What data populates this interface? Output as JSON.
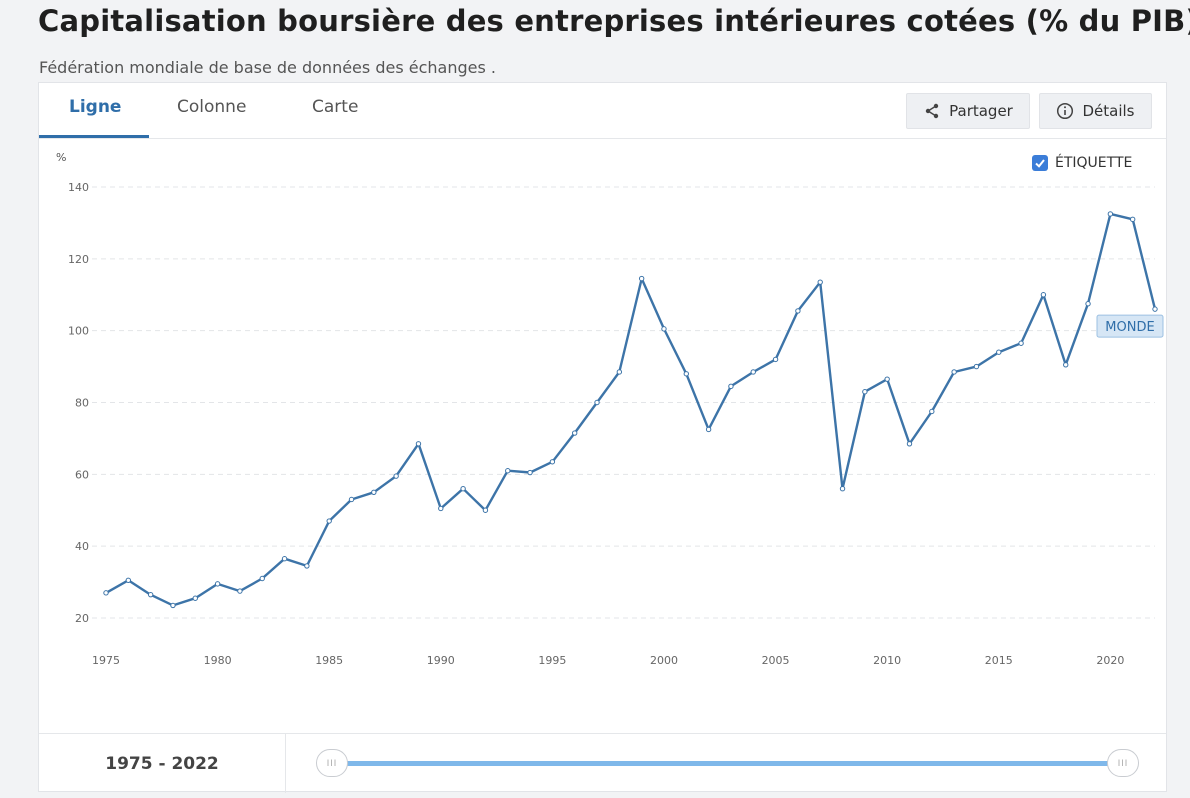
{
  "header": {
    "title": "Capitalisation boursière des entreprises intérieures cotées (% du PIB)",
    "subtitle": "Fédération mondiale de base de données des échanges ."
  },
  "tabs": [
    {
      "label": "Ligne",
      "active": true
    },
    {
      "label": "Colonne",
      "active": false
    },
    {
      "label": "Carte",
      "active": false
    }
  ],
  "toolbar": {
    "share_label": "Partager",
    "details_label": "Détails",
    "share_icon": "share-icon",
    "details_icon": "info-icon"
  },
  "label_toggle": {
    "label": "ÉTIQUETTE",
    "checked": true
  },
  "footer": {
    "range_label": "1975 - 2022",
    "slider_start": 1975,
    "slider_end": 2022
  },
  "colors": {
    "accent": "#2f6ea9",
    "line": "#3d74a8",
    "slider": "#7fb8ea"
  },
  "chart_data": {
    "type": "line",
    "ylabel": "%",
    "ylim": [
      20,
      140
    ],
    "xlim": [
      1975,
      2022
    ],
    "yticks": [
      20,
      40,
      60,
      80,
      100,
      120,
      140
    ],
    "xticks": [
      1975,
      1980,
      1985,
      1990,
      1995,
      2000,
      2005,
      2010,
      2015,
      2020
    ],
    "grid": true,
    "series": [
      {
        "name": "MONDE",
        "x": [
          1975,
          1976,
          1977,
          1978,
          1979,
          1980,
          1981,
          1982,
          1983,
          1984,
          1985,
          1986,
          1987,
          1988,
          1989,
          1990,
          1991,
          1992,
          1993,
          1994,
          1995,
          1996,
          1997,
          1998,
          1999,
          2000,
          2001,
          2002,
          2003,
          2004,
          2005,
          2006,
          2007,
          2008,
          2009,
          2010,
          2011,
          2012,
          2013,
          2014,
          2015,
          2016,
          2017,
          2018,
          2019,
          2020,
          2021,
          2022
        ],
        "values": [
          27,
          30.5,
          26.5,
          23.5,
          25.5,
          29.5,
          27.5,
          31,
          36.5,
          34.5,
          47,
          53,
          55,
          59.5,
          68.5,
          50.5,
          56,
          50,
          61,
          60.5,
          63.5,
          71.5,
          80,
          88.5,
          114.5,
          100.5,
          88,
          72.5,
          84.5,
          88.5,
          92,
          105.5,
          113.5,
          56,
          83,
          86.5,
          68.5,
          77.5,
          88.5,
          90,
          94,
          96.5,
          110,
          90.5,
          107.5,
          132.5,
          131,
          106
        ]
      }
    ]
  }
}
